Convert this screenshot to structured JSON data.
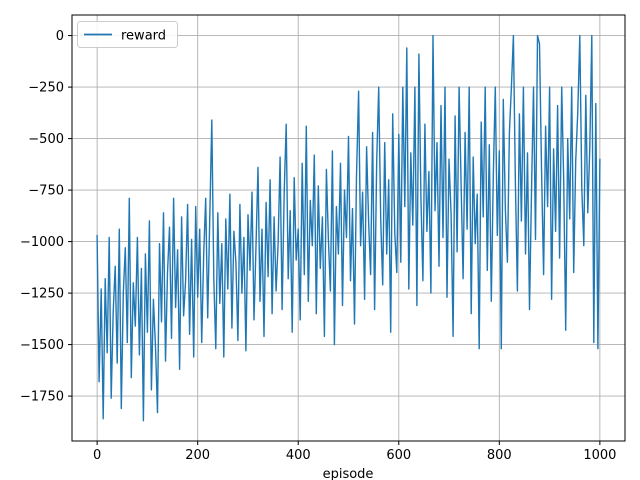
{
  "figure": {
    "background": "#ffffff",
    "xlabel": "episode"
  },
  "legend": {
    "label": "reward",
    "position": "upper left"
  },
  "colors": {
    "line": "#1f77b4",
    "grid": "#b0b0b0",
    "spine": "#000000",
    "tick_label": "#000000",
    "legend_border": "#cccccc",
    "legend_fill": "rgba(255,255,255,0.85)"
  },
  "chart_data": {
    "type": "line",
    "title": "",
    "xlabel": "episode",
    "ylabel": "",
    "grid": true,
    "legend_position": "upper left",
    "xlim": [
      -50,
      1050
    ],
    "ylim": [
      -1968,
      100
    ],
    "xticks": [
      0,
      200,
      400,
      600,
      800,
      1000
    ],
    "xtick_labels": [
      "0",
      "200",
      "400",
      "600",
      "800",
      "1000"
    ],
    "yticks": [
      0,
      -250,
      -500,
      -750,
      -1000,
      -1250,
      -1500,
      -1750
    ],
    "ytick_labels": [
      "0",
      "−250",
      "−500",
      "−750",
      "−1000",
      "−1250",
      "−1500",
      "−1750"
    ],
    "series": [
      {
        "name": "reward",
        "color": "#1f77b4",
        "x": [
          0,
          4,
          8,
          12,
          16,
          20,
          24,
          28,
          32,
          36,
          40,
          44,
          48,
          52,
          56,
          60,
          64,
          68,
          72,
          76,
          80,
          84,
          88,
          92,
          96,
          100,
          104,
          108,
          112,
          116,
          120,
          124,
          128,
          132,
          136,
          140,
          144,
          148,
          152,
          156,
          160,
          164,
          168,
          172,
          176,
          180,
          184,
          188,
          192,
          196,
          200,
          204,
          208,
          212,
          216,
          220,
          224,
          228,
          232,
          236,
          240,
          244,
          248,
          252,
          256,
          260,
          264,
          268,
          272,
          276,
          280,
          284,
          288,
          292,
          296,
          300,
          304,
          308,
          312,
          316,
          320,
          324,
          328,
          332,
          336,
          340,
          344,
          348,
          352,
          356,
          360,
          364,
          368,
          372,
          376,
          380,
          384,
          388,
          392,
          396,
          400,
          404,
          408,
          412,
          416,
          420,
          424,
          428,
          432,
          436,
          440,
          444,
          448,
          452,
          456,
          460,
          464,
          468,
          472,
          476,
          480,
          484,
          488,
          492,
          496,
          500,
          504,
          508,
          512,
          516,
          520,
          524,
          528,
          532,
          536,
          540,
          544,
          548,
          552,
          556,
          560,
          564,
          568,
          572,
          576,
          580,
          584,
          588,
          592,
          596,
          600,
          604,
          608,
          612,
          616,
          620,
          624,
          628,
          632,
          636,
          640,
          644,
          648,
          652,
          656,
          660,
          664,
          668,
          672,
          676,
          680,
          684,
          688,
          692,
          696,
          700,
          704,
          708,
          712,
          716,
          720,
          724,
          728,
          732,
          736,
          740,
          744,
          748,
          752,
          756,
          760,
          764,
          768,
          772,
          776,
          780,
          784,
          788,
          792,
          796,
          800,
          804,
          808,
          812,
          816,
          820,
          824,
          828,
          832,
          836,
          840,
          844,
          848,
          852,
          856,
          860,
          864,
          868,
          872,
          876,
          880,
          884,
          888,
          892,
          896,
          900,
          904,
          908,
          912,
          916,
          920,
          924,
          928,
          932,
          936,
          940,
          944,
          948,
          952,
          956,
          960,
          964,
          968,
          972,
          976,
          980,
          984,
          988,
          992,
          996,
          1000
        ],
        "y": [
          -970,
          -1680,
          -1230,
          -1860,
          -1180,
          -1540,
          -980,
          -1760,
          -1340,
          -1120,
          -1590,
          -940,
          -1810,
          -1250,
          -1030,
          -1490,
          -790,
          -1660,
          -1200,
          -1410,
          -980,
          -1550,
          -1130,
          -1870,
          -1060,
          -1440,
          -900,
          -1720,
          -1280,
          -1510,
          -1830,
          -1010,
          -1390,
          -860,
          -1580,
          -1150,
          -930,
          -1470,
          -790,
          -1320,
          -1040,
          -1620,
          -880,
          -1360,
          -1190,
          -820,
          -1450,
          -990,
          -1560,
          -830,
          -1270,
          -940,
          -1490,
          -1060,
          -790,
          -1370,
          -900,
          -410,
          -1180,
          -1520,
          -860,
          -1300,
          -1010,
          -1560,
          -890,
          -1230,
          -770,
          -1420,
          -950,
          -1100,
          -1480,
          -820,
          -1250,
          -980,
          -1530,
          -870,
          -1140,
          -760,
          -1380,
          -1020,
          -640,
          -1290,
          -940,
          -1460,
          -810,
          -1170,
          -700,
          -1350,
          -880,
          -1240,
          -1010,
          -590,
          -1330,
          -760,
          -430,
          -1180,
          -850,
          -1440,
          -690,
          -1090,
          -940,
          -1380,
          -620,
          -1160,
          -440,
          -1290,
          -800,
          -1020,
          -580,
          -1350,
          -730,
          -1130,
          -880,
          -1460,
          -650,
          -990,
          -1240,
          -560,
          -1500,
          -830,
          -1060,
          -620,
          -1310,
          -750,
          -980,
          -490,
          -1190,
          -840,
          -1400,
          -680,
          -270,
          -1020,
          -760,
          -1280,
          -540,
          -900,
          -1160,
          -470,
          -1330,
          -610,
          -250,
          -890,
          -1210,
          -520,
          -1060,
          -700,
          -1440,
          -380,
          -960,
          -1150,
          -480,
          -1100,
          -250,
          -830,
          -60,
          -1230,
          -570,
          -920,
          -250,
          -1310,
          -90,
          -780,
          -1190,
          -430,
          -950,
          -660,
          -1250,
          0,
          -850,
          -520,
          -1120,
          -340,
          -980,
          -250,
          -1270,
          -600,
          -870,
          -1460,
          -390,
          -1050,
          -250,
          -720,
          -1180,
          -470,
          -940,
          -250,
          -1350,
          -590,
          -1010,
          -770,
          -1520,
          -420,
          -880,
          -250,
          -1140,
          -530,
          -1290,
          -680,
          -250,
          -970,
          -560,
          -1520,
          -310,
          -850,
          -1100,
          -470,
          -250,
          0,
          -720,
          -1240,
          -380,
          -900,
          -250,
          -1060,
          -570,
          -1330,
          -760,
          -250,
          -990,
          0,
          -40,
          -640,
          -1160,
          -440,
          -830,
          -250,
          -1280,
          -550,
          -950,
          -340,
          -1080,
          -250,
          -700,
          -1430,
          -500,
          -890,
          -250,
          -1150,
          -610,
          -380,
          0,
          -740,
          -1020,
          -290,
          -860,
          -540,
          0,
          -1490,
          -330,
          -1520,
          -600
        ]
      }
    ]
  }
}
